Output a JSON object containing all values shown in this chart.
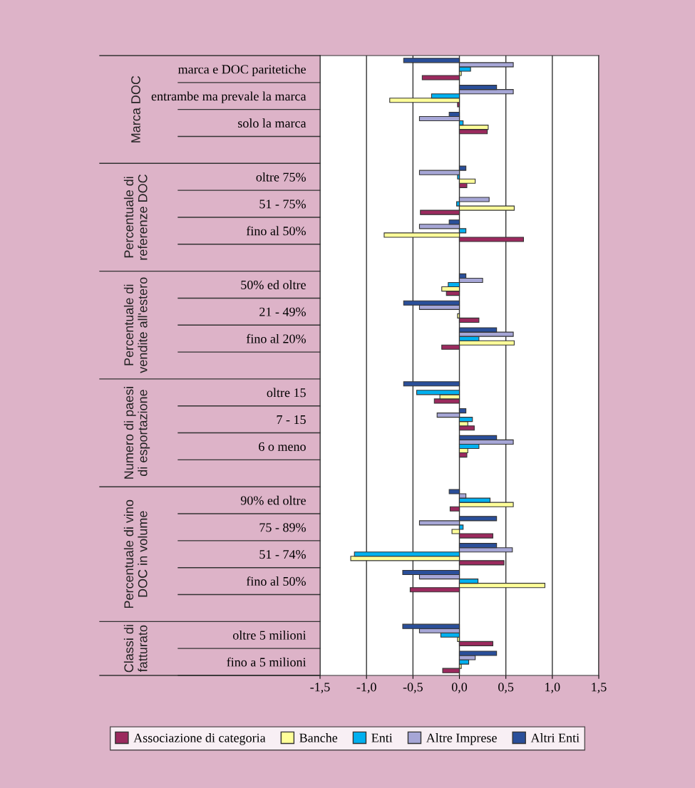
{
  "chart_data": {
    "type": "bar",
    "orientation": "horizontal",
    "categories": [
      "marca e DOC paritetiche",
      "entrambe ma prevale la marca",
      "solo la marca",
      null,
      "oltre 75%",
      "51 - 75%",
      "fino al 50%",
      null,
      "50% ed oltre",
      "21 - 49%",
      "fino al 20%",
      null,
      "oltre 15",
      "7 - 15",
      "6 o meno",
      null,
      "90% ed oltre",
      "75 - 89%",
      "51 - 74%",
      "fino al 50%",
      null,
      "oltre 5 milioni",
      "fino a 5 milioni"
    ],
    "annotations": [
      "Marca DOC",
      "Percentuale di\nreferenze DOC",
      "Percentuale di\nvendite all'estero",
      "Numero di paesi\ndi esportazione",
      "Percentuale di vino\nDOC in volume",
      "Classi di\nfatturato"
    ],
    "series": [
      {
        "name": "Associazione di categoria",
        "color": "#9b2a5e",
        "values": [
          -0.4,
          -0.02,
          0.3,
          null,
          0.08,
          -0.42,
          0.69,
          null,
          -0.14,
          0.21,
          -0.19,
          null,
          -0.27,
          0.16,
          0.08,
          null,
          -0.1,
          0.36,
          0.48,
          -0.53,
          null,
          0.36,
          -0.18
        ]
      },
      {
        "name": "Banche",
        "color": "#ffff99",
        "values": [
          0.02,
          -0.75,
          0.31,
          null,
          0.17,
          0.59,
          -0.81,
          null,
          -0.19,
          -0.02,
          0.59,
          null,
          -0.21,
          0.09,
          0.09,
          null,
          0.58,
          -0.08,
          -1.17,
          0.92,
          null,
          -0.02,
          0.02
        ]
      },
      {
        "name": "Enti",
        "color": "#00b0f0",
        "values": [
          0.12,
          -0.3,
          0.04,
          null,
          -0.02,
          -0.03,
          0.07,
          null,
          -0.12,
          null,
          0.21,
          null,
          -0.46,
          0.14,
          0.21,
          null,
          0.33,
          0.04,
          -1.13,
          0.2,
          null,
          -0.2,
          0.1
        ]
      },
      {
        "name": "Altre Imprese",
        "color": "#a6a6d6",
        "values": [
          0.58,
          0.58,
          -0.43,
          null,
          -0.43,
          0.32,
          -0.43,
          null,
          0.25,
          -0.43,
          0.58,
          null,
          null,
          -0.24,
          0.58,
          null,
          0.07,
          -0.43,
          0.57,
          -0.43,
          null,
          -0.43,
          0.17
        ]
      },
      {
        "name": "Altri Enti",
        "color": "#2a4f9a",
        "values": [
          -0.6,
          0.4,
          -0.11,
          null,
          0.07,
          null,
          -0.11,
          null,
          0.07,
          -0.6,
          0.4,
          null,
          -0.6,
          0.07,
          0.4,
          null,
          -0.11,
          0.4,
          0.4,
          -0.61,
          null,
          -0.61,
          0.4
        ]
      }
    ],
    "xlim": [
      -1.5,
      1.5
    ],
    "xticks": [
      {
        "value": -1.5,
        "label": "-1,5"
      },
      {
        "value": -1.0,
        "label": "-1,0"
      },
      {
        "value": -0.5,
        "label": "-0,5"
      },
      {
        "value": 0.0,
        "label": "0,0"
      },
      {
        "value": 0.5,
        "label": "0,5"
      },
      {
        "value": 1.0,
        "label": "1,0"
      },
      {
        "value": 1.5,
        "label": "1,5"
      }
    ],
    "grid": "x",
    "legend": "bottom"
  }
}
